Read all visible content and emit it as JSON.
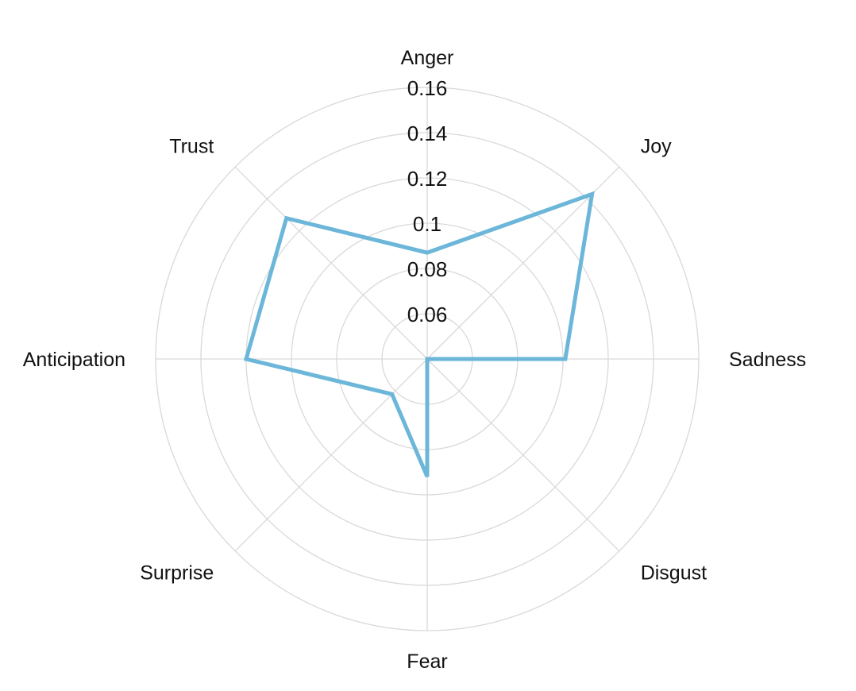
{
  "chart_data": {
    "type": "radar",
    "title": "",
    "categories": [
      "Anger",
      "Joy",
      "Sadness",
      "Disgust",
      "Fear",
      "Surprise",
      "Anticipation",
      "Trust"
    ],
    "radial_ticks": [
      "0.06",
      "0.08",
      "0.1",
      "0.12",
      "0.14",
      "0.16"
    ],
    "radial_tick_values": [
      0.06,
      0.08,
      0.1,
      0.12,
      0.14,
      0.16
    ],
    "rlim": [
      0.04,
      0.16
    ],
    "grid": true,
    "legend": "none",
    "series": [
      {
        "values": [
          0.087,
          0.143,
          0.101,
          0.04,
          0.092,
          0.062,
          0.12,
          0.128
        ],
        "color": "#6cb6d9"
      }
    ]
  }
}
